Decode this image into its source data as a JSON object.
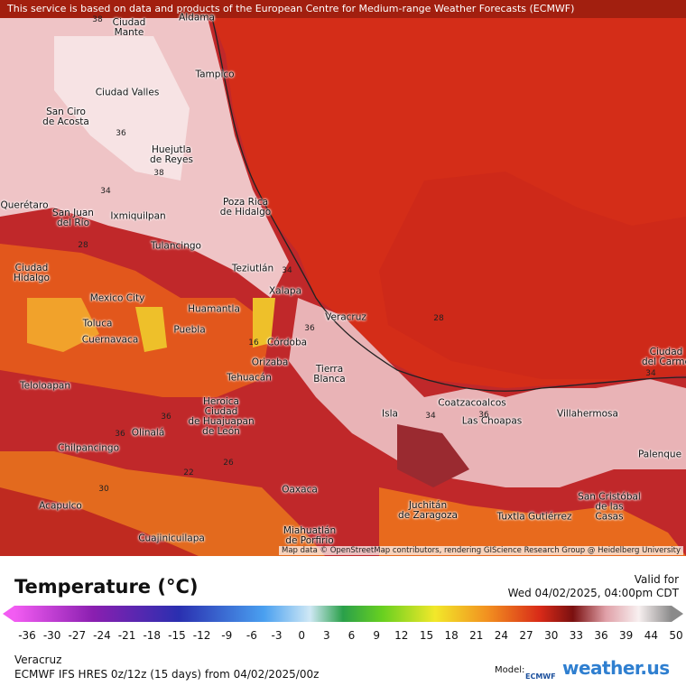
{
  "banner": "This service is based on data and products of the European Centre for Medium-range Weather Forecasts (ECMWF)",
  "map": {
    "cities": [
      "Aldama",
      "Ciudad\nMante",
      "Tampico",
      "Ciudad Valles",
      "San Ciro\nde Acosta",
      "Huejutla\nde Reyes",
      "Poza Rica\nde Hidalgo",
      "Querétaro",
      "San Juan\ndel Río",
      "Ixmiquilpan",
      "Tulancingo",
      "Ciudad\nHidalgo",
      "Teziutlán",
      "Xalapa",
      "Mexico City",
      "Huamantla",
      "Veracruz",
      "Toluca",
      "Puebla",
      "Cuernavaca",
      "Córdoba",
      "Orizaba",
      "Tierra\nBlanca",
      "Tehuacán",
      "Teloloapan",
      "Heroica\nCiudad\nde Huajuapan\nde León",
      "Coatzacoalcos",
      "Las Choapas",
      "Villahermosa",
      "Ciudad\ndel Carme",
      "Isla",
      "Olinalá",
      "Chilpancingo",
      "Palenque",
      "Oaxaca",
      "San Cristóbal\nde las\nCasas",
      "Acapulco",
      "Tuxtla Gutiérrez",
      "Juchitán\nde Zaragoza",
      "Miahuatlán\nde Porfirio",
      "Cuajinicuilapa"
    ],
    "contour_labels": [
      38,
      36,
      38,
      34,
      28,
      34,
      36,
      16,
      28,
      36,
      34,
      36,
      36,
      22,
      26,
      34,
      30
    ],
    "attribution": "Map data © OpenStreetMap contributors, rendering GIScience Research Group @ Heidelberg University"
  },
  "legend": {
    "title": "Temperature (°C)",
    "valid_label": "Valid for",
    "valid_time": "Wed 04/02/2025, 04:00pm CDT",
    "ticks": [
      -36,
      -30,
      -27,
      -24,
      -21,
      -18,
      -15,
      -12,
      -9,
      -6,
      -3,
      0,
      3,
      6,
      9,
      12,
      15,
      18,
      21,
      24,
      27,
      30,
      33,
      36,
      39,
      44,
      50
    ]
  },
  "footer": {
    "location": "Veracruz",
    "model_run": "ECMWF IFS HRES 0z/12z (15 days) from 04/02/2025/00z",
    "model_label": "Model:",
    "model_name": "ECMWF",
    "brand": "weather.us"
  }
}
